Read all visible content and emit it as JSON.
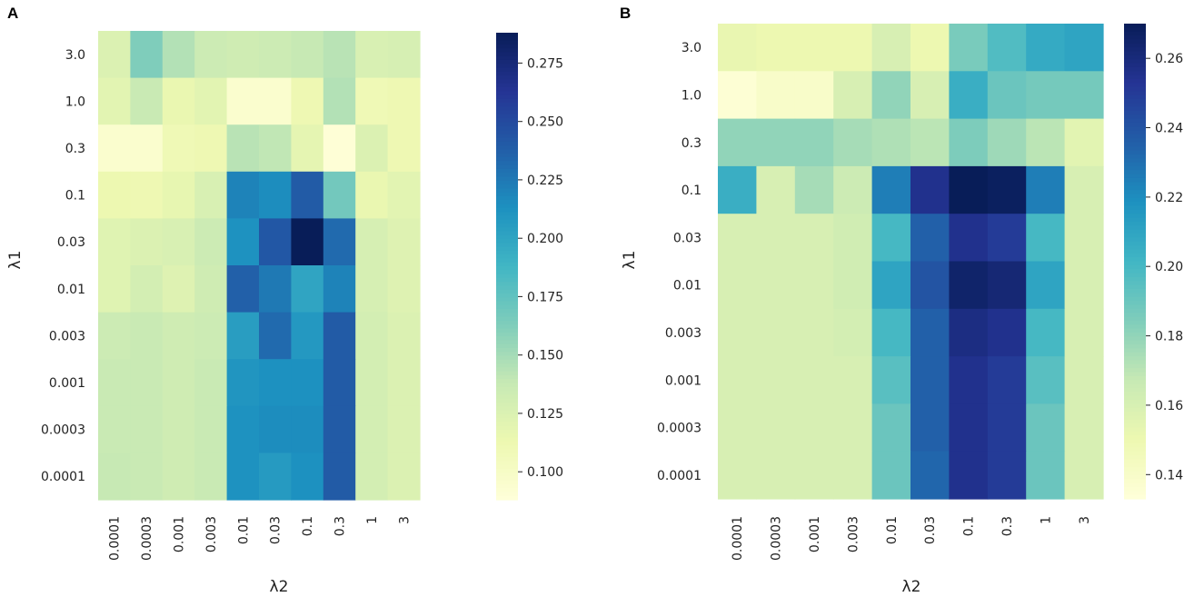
{
  "chart_data": [
    {
      "panel": "A",
      "type": "heatmap",
      "title": "",
      "xlabel": "λ2",
      "ylabel": "λ1",
      "x_categories": [
        "0.0001",
        "0.0003",
        "0.001",
        "0.003",
        "0.01",
        "0.03",
        "0.1",
        "0.3",
        "1",
        "3"
      ],
      "y_categories": [
        "3.0",
        "1.0",
        "0.3",
        "0.1",
        "0.03",
        "0.01",
        "0.003",
        "0.001",
        "0.0003",
        "0.0001"
      ],
      "values": [
        [
          0.125,
          0.163,
          0.145,
          0.135,
          0.133,
          0.135,
          0.138,
          0.143,
          0.127,
          0.128
        ],
        [
          0.12,
          0.137,
          0.115,
          0.12,
          0.095,
          0.095,
          0.112,
          0.145,
          0.11,
          0.112
        ],
        [
          0.095,
          0.095,
          0.11,
          0.112,
          0.143,
          0.14,
          0.118,
          0.09,
          0.125,
          0.112
        ],
        [
          0.113,
          0.112,
          0.117,
          0.127,
          0.22,
          0.215,
          0.24,
          0.168,
          0.115,
          0.12
        ],
        [
          0.122,
          0.125,
          0.127,
          0.135,
          0.212,
          0.242,
          0.288,
          0.232,
          0.128,
          0.123
        ],
        [
          0.122,
          0.13,
          0.123,
          0.133,
          0.237,
          0.225,
          0.2,
          0.22,
          0.128,
          0.123
        ],
        [
          0.135,
          0.137,
          0.133,
          0.135,
          0.205,
          0.232,
          0.208,
          0.24,
          0.13,
          0.125
        ],
        [
          0.137,
          0.137,
          0.133,
          0.137,
          0.21,
          0.213,
          0.213,
          0.24,
          0.13,
          0.125
        ],
        [
          0.137,
          0.137,
          0.133,
          0.137,
          0.212,
          0.215,
          0.215,
          0.24,
          0.13,
          0.125
        ],
        [
          0.138,
          0.137,
          0.133,
          0.137,
          0.212,
          0.207,
          0.213,
          0.24,
          0.13,
          0.125
        ]
      ],
      "vmin": 0.088,
      "vmax": 0.288,
      "colorbar_ticks": [
        0.1,
        0.125,
        0.15,
        0.175,
        0.2,
        0.225,
        0.25,
        0.275
      ],
      "colorbar_tick_labels": [
        "0.100",
        "0.125",
        "0.150",
        "0.175",
        "0.200",
        "0.225",
        "0.250",
        "0.275"
      ],
      "colormap": "YlGnBu"
    },
    {
      "panel": "B",
      "type": "heatmap",
      "title": "",
      "xlabel": "λ2",
      "ylabel": "λ1",
      "x_categories": [
        "0.0001",
        "0.0003",
        "0.001",
        "0.003",
        "0.01",
        "0.03",
        "0.1",
        "0.3",
        "1",
        "3"
      ],
      "y_categories": [
        "3.0",
        "1.0",
        "0.3",
        "0.1",
        "0.03",
        "0.01",
        "0.003",
        "0.001",
        "0.0003",
        "0.0001"
      ],
      "values": [
        [
          0.152,
          0.15,
          0.15,
          0.15,
          0.16,
          0.15,
          0.186,
          0.197,
          0.207,
          0.21
        ],
        [
          0.135,
          0.14,
          0.14,
          0.16,
          0.18,
          0.16,
          0.205,
          0.19,
          0.187,
          0.187
        ],
        [
          0.18,
          0.18,
          0.18,
          0.175,
          0.173,
          0.17,
          0.185,
          0.177,
          0.17,
          0.155
        ],
        [
          0.205,
          0.16,
          0.175,
          0.165,
          0.225,
          0.255,
          0.27,
          0.268,
          0.225,
          0.16
        ],
        [
          0.16,
          0.16,
          0.16,
          0.163,
          0.2,
          0.235,
          0.255,
          0.25,
          0.2,
          0.16
        ],
        [
          0.16,
          0.16,
          0.16,
          0.163,
          0.21,
          0.24,
          0.265,
          0.262,
          0.21,
          0.16
        ],
        [
          0.16,
          0.16,
          0.16,
          0.162,
          0.2,
          0.235,
          0.258,
          0.255,
          0.2,
          0.16
        ],
        [
          0.16,
          0.16,
          0.16,
          0.16,
          0.195,
          0.235,
          0.255,
          0.25,
          0.195,
          0.16
        ],
        [
          0.16,
          0.16,
          0.16,
          0.16,
          0.19,
          0.235,
          0.255,
          0.25,
          0.19,
          0.16
        ],
        [
          0.16,
          0.16,
          0.16,
          0.16,
          0.19,
          0.233,
          0.255,
          0.25,
          0.19,
          0.16
        ]
      ],
      "vmin": 0.133,
      "vmax": 0.27,
      "colorbar_ticks": [
        0.14,
        0.16,
        0.18,
        0.2,
        0.22,
        0.24,
        0.26
      ],
      "colorbar_tick_labels": [
        "0.14",
        "0.16",
        "0.18",
        "0.20",
        "0.22",
        "0.24",
        "0.26"
      ],
      "colormap": "YlGnBu"
    }
  ]
}
